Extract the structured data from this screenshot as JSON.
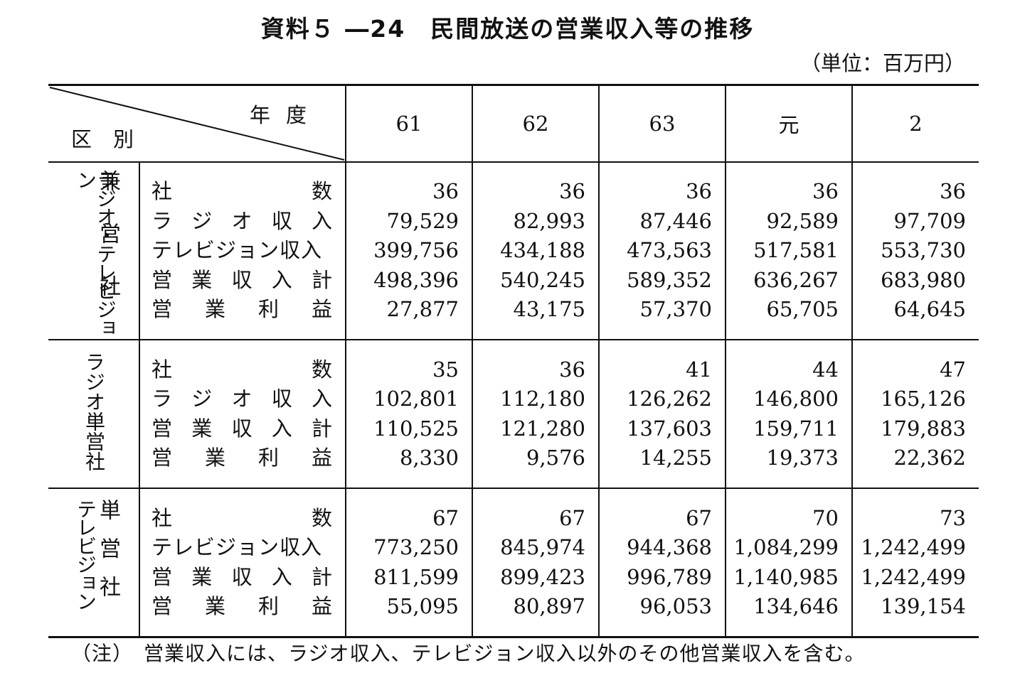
{
  "title": "資料５ ―24　民間放送の営業収入等の推移",
  "unit": "（単位：百万円）",
  "header": {
    "year_label": "年度",
    "category_label": "区別",
    "years": [
      "61",
      "62",
      "63",
      "元",
      "2"
    ]
  },
  "groups": [
    {
      "name_left": "ラジオ・テレビジョン",
      "name_right": "兼営社",
      "rows": [
        {
          "label": "社数",
          "values": [
            "36",
            "36",
            "36",
            "36",
            "36"
          ]
        },
        {
          "label": "ラジオ収入",
          "values": [
            "79,529",
            "82,993",
            "87,446",
            "92,589",
            "97,709"
          ]
        },
        {
          "label": "テレビジョン収入",
          "values": [
            "399,756",
            "434,188",
            "473,563",
            "517,581",
            "553,730"
          ]
        },
        {
          "label": "営業収入計",
          "values": [
            "498,396",
            "540,245",
            "589,352",
            "636,267",
            "683,980"
          ]
        },
        {
          "label": "営業利益",
          "values": [
            "27,877",
            "43,175",
            "57,370",
            "65,705",
            "64,645"
          ]
        }
      ]
    },
    {
      "name_left": "ラジオ単営社",
      "name_right": "",
      "rows": [
        {
          "label": "社数",
          "values": [
            "35",
            "36",
            "41",
            "44",
            "47"
          ]
        },
        {
          "label": "ラジオ収入",
          "values": [
            "102,801",
            "112,180",
            "126,262",
            "146,800",
            "165,126"
          ]
        },
        {
          "label": "営業収入計",
          "values": [
            "110,525",
            "121,280",
            "137,603",
            "159,711",
            "179,883"
          ]
        },
        {
          "label": "営業利益",
          "values": [
            "8,330",
            "9,576",
            "14,255",
            "19,373",
            "22,362"
          ]
        }
      ]
    },
    {
      "name_left": "テレビジョン",
      "name_right": "単営社",
      "rows": [
        {
          "label": "社数",
          "values": [
            "67",
            "67",
            "67",
            "70",
            "73"
          ]
        },
        {
          "label": "テレビジョン収入",
          "values": [
            "773,250",
            "845,974",
            "944,368",
            "1,084,299",
            "1,242,499"
          ]
        },
        {
          "label": "営業収入計",
          "values": [
            "811,599",
            "899,423",
            "996,789",
            "1,140,985",
            "1,242,499"
          ]
        },
        {
          "label": "営業利益",
          "values": [
            "55,095",
            "80,897",
            "96,053",
            "134,646",
            "139,154"
          ]
        }
      ]
    }
  ],
  "note": "（注）　営業収入には、ラジオ収入、テレビジョン収入以外のその他営業収入を含む。"
}
